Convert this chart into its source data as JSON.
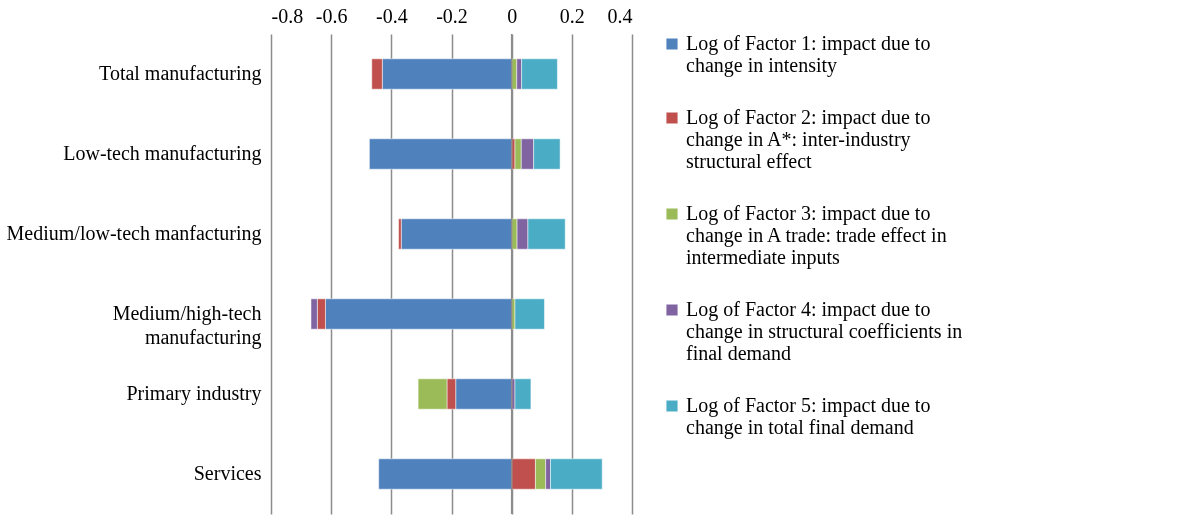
{
  "chart_data": {
    "type": "bar",
    "orientation": "horizontal",
    "stacked": true,
    "categories": [
      "Total manufacturing",
      "Low-tech manufacturing",
      "Medium/low-tech manfacturing",
      "Medium/high-tech manufacturing",
      "Primary industry",
      "Services"
    ],
    "series": [
      {
        "name": "Log of Factor 1: impact due to change in intensity",
        "color": "#4f81bd",
        "values": [
          -0.43,
          -0.473,
          -0.367,
          -0.619,
          -0.186,
          -0.442
        ]
      },
      {
        "name": "Log of Factor 2: impact due to change in A*: inter-industry structural effect",
        "color": "#c0504d",
        "values": [
          -0.035,
          0.011,
          -0.009,
          -0.027,
          -0.029,
          0.079
        ]
      },
      {
        "name": "Log of Factor 3: impact due to change in A trade: trade effect in intermediate inputs",
        "color": "#9bbb59",
        "values": [
          0.017,
          0.021,
          0.018,
          0.011,
          -0.096,
          0.034
        ]
      },
      {
        "name": "Log of Factor 4: impact due to change in structural coefficients in final demand",
        "color": "#8064a2",
        "values": [
          0.016,
          0.041,
          0.036,
          -0.021,
          0.011,
          0.016
        ]
      },
      {
        "name": "Log of Factor 5: impact due to change in total final demand",
        "color": "#4bacc6",
        "values": [
          0.119,
          0.088,
          0.124,
          0.098,
          0.053,
          0.172
        ]
      }
    ],
    "xlim": [
      -0.8,
      0.4
    ],
    "xticks": [
      -0.8,
      -0.6,
      -0.4,
      -0.2,
      0,
      0.2,
      0.4
    ],
    "grid": "x",
    "legend": "right"
  }
}
